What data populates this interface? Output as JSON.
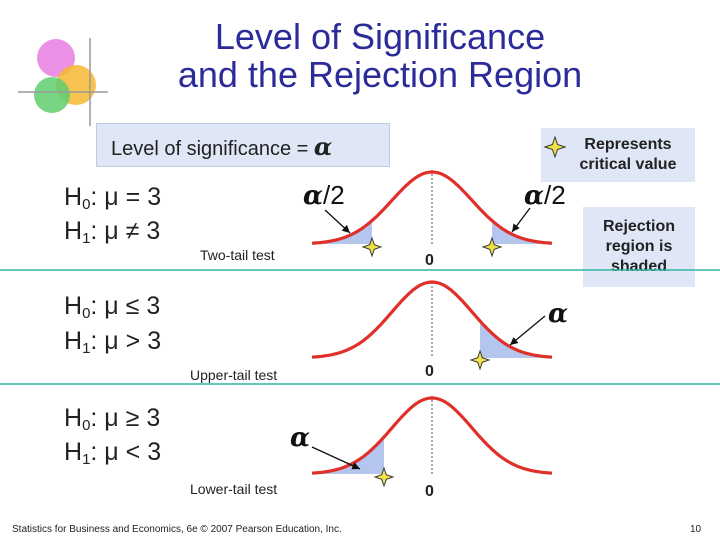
{
  "title": {
    "line1": "Level of Significance",
    "line2": "and the Rejection Region"
  },
  "significance_box": {
    "label": "Level of significance = ",
    "symbol": "α"
  },
  "legend": {
    "critical_value": "Represents critical value",
    "rejection_region": "Rejection region is shaded"
  },
  "panels": [
    {
      "h0_label": "H",
      "h0_sub": "0",
      "h0_rel": ": μ = 3",
      "h1_label": "H",
      "h1_sub": "1",
      "h1_rel": ": μ ≠ 3",
      "test": "Two-tail test",
      "zero": "0",
      "alpha_symbol": "α",
      "alpha_suffix": "/2"
    },
    {
      "h0_label": "H",
      "h0_sub": "0",
      "h0_rel": ": μ ≤ 3",
      "h1_label": "H",
      "h1_sub": "1",
      "h1_rel": ": μ > 3",
      "test": "Upper-tail test",
      "zero": "0",
      "alpha_symbol": "α"
    },
    {
      "h0_label": "H",
      "h0_sub": "0",
      "h0_rel": ": μ ≥ 3",
      "h1_label": "H",
      "h1_sub": "1",
      "h1_rel": ": μ < 3",
      "test": "Lower-tail test",
      "zero": "0",
      "alpha_symbol": "α"
    }
  ],
  "footer": "Statistics for Business and Economics, 6e © 2007 Pearson Education, Inc.",
  "page_number": "10",
  "colors": {
    "title": "#2b2b9a",
    "curve": "#e0302a",
    "shade": "#b4c6ee",
    "divider": "#33b3a0",
    "box": "#dfe6f6",
    "star": "#f2e24a"
  }
}
